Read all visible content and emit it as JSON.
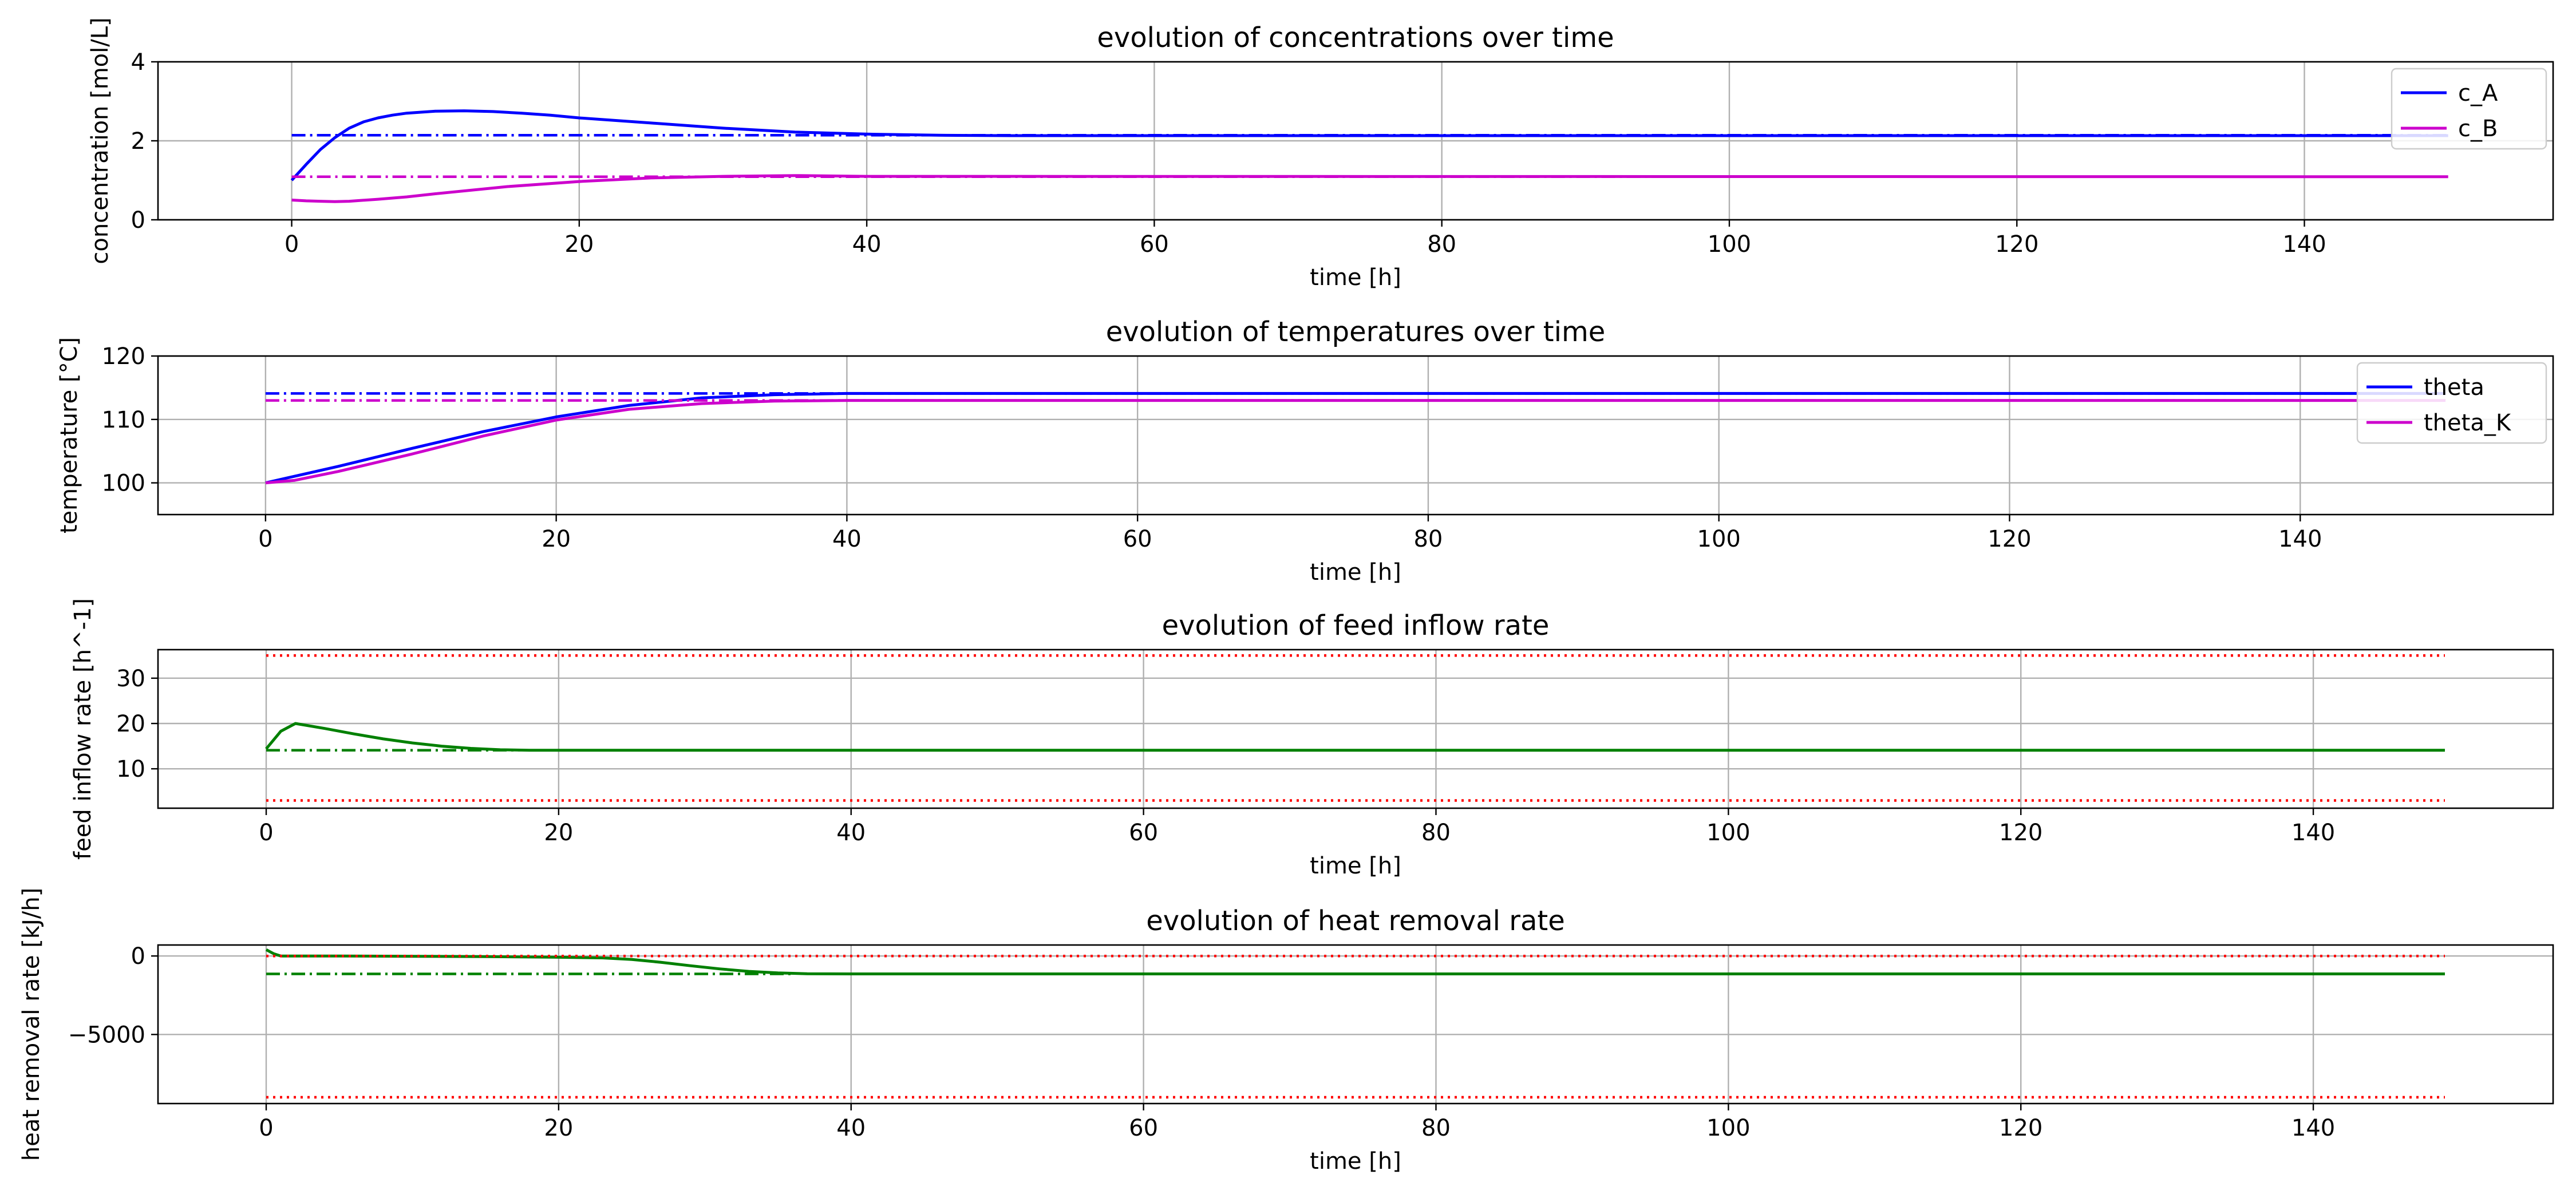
{
  "chart_data": [
    {
      "type": "line",
      "title": "evolution of concentrations over time",
      "xlabel": "time [h]",
      "ylabel": "concentration [mol/L]",
      "xlim": [
        -9.3,
        157.3
      ],
      "ylim": [
        0,
        4
      ],
      "xticks": [
        0,
        20,
        40,
        60,
        80,
        100,
        120,
        140
      ],
      "yticks": [
        0,
        2,
        4
      ],
      "grid": true,
      "legend_position": "upper right",
      "series": [
        {
          "name": "c_A",
          "color": "#0000ff",
          "style": "solid",
          "x": [
            0,
            1,
            2,
            3,
            4,
            5,
            6,
            7,
            8,
            10,
            12,
            14,
            16,
            18,
            20,
            25,
            30,
            35,
            40,
            45,
            50,
            150
          ],
          "y": [
            1.0,
            1.4,
            1.78,
            2.08,
            2.32,
            2.48,
            2.58,
            2.65,
            2.7,
            2.75,
            2.76,
            2.74,
            2.7,
            2.65,
            2.58,
            2.45,
            2.32,
            2.22,
            2.17,
            2.14,
            2.13,
            2.13
          ]
        },
        {
          "name": "c_B",
          "color": "#cc00cc",
          "style": "solid",
          "x": [
            0,
            1,
            2,
            3,
            4,
            6,
            8,
            10,
            15,
            20,
            25,
            30,
            35,
            40,
            150
          ],
          "y": [
            0.5,
            0.48,
            0.47,
            0.46,
            0.47,
            0.52,
            0.58,
            0.66,
            0.84,
            0.97,
            1.06,
            1.1,
            1.12,
            1.1,
            1.09
          ]
        },
        {
          "color": "#0000ff",
          "style": "dashdot",
          "x": [
            0,
            150
          ],
          "y": [
            2.14,
            2.14
          ]
        },
        {
          "color": "#cc00cc",
          "style": "dashdot",
          "x": [
            0,
            150
          ],
          "y": [
            1.09,
            1.09
          ]
        }
      ]
    },
    {
      "type": "line",
      "title": "evolution of temperatures over time",
      "xlabel": "time [h]",
      "ylabel": "temperature [°C]",
      "xlim": [
        -7.4,
        157.4
      ],
      "ylim": [
        95,
        120
      ],
      "xticks": [
        0,
        20,
        40,
        60,
        80,
        100,
        120,
        140
      ],
      "yticks": [
        100,
        110,
        120
      ],
      "grid": true,
      "legend_position": "upper right",
      "series": [
        {
          "name": "theta",
          "color": "#0000ff",
          "style": "solid",
          "x": [
            0,
            5,
            10,
            15,
            20,
            25,
            30,
            35,
            40,
            150
          ],
          "y": [
            100,
            102.6,
            105.4,
            108.1,
            110.4,
            112.2,
            113.4,
            113.9,
            114.1,
            114.1
          ]
        },
        {
          "name": "theta_K",
          "color": "#cc00cc",
          "style": "solid",
          "x": [
            0,
            2,
            5,
            10,
            15,
            20,
            25,
            30,
            35,
            40,
            150
          ],
          "y": [
            100,
            100.4,
            101.8,
            104.5,
            107.4,
            109.9,
            111.6,
            112.5,
            112.9,
            113.0,
            113.0
          ]
        },
        {
          "color": "#0000ff",
          "style": "dashdot",
          "x": [
            0,
            150
          ],
          "y": [
            114.1,
            114.1
          ]
        },
        {
          "color": "#cc00cc",
          "style": "dashdot",
          "x": [
            0,
            150
          ],
          "y": [
            113.0,
            113.0
          ]
        }
      ]
    },
    {
      "type": "line",
      "title": "evolution of feed inflow rate",
      "xlabel": "time [h]",
      "ylabel": "feed inflow rate [h^-1]",
      "xlim": [
        -7.4,
        156.4
      ],
      "ylim": [
        1.3,
        36.3
      ],
      "xticks": [
        0,
        20,
        40,
        60,
        80,
        100,
        120,
        140
      ],
      "yticks": [
        10,
        20,
        30
      ],
      "grid": true,
      "series": [
        {
          "color": "#008000",
          "style": "solid",
          "x": [
            0,
            1,
            2,
            4,
            6,
            8,
            10,
            12,
            14,
            16,
            18,
            20,
            149
          ],
          "y": [
            14.4,
            18.3,
            20.0,
            18.9,
            17.7,
            16.6,
            15.7,
            15.0,
            14.5,
            14.2,
            14.1,
            14.1,
            14.1
          ]
        },
        {
          "color": "#008000",
          "style": "dashdot",
          "x": [
            0,
            18
          ],
          "y": [
            14.1,
            14.1
          ]
        },
        {
          "color": "#ff0000",
          "style": "dotted",
          "x": [
            0,
            149
          ],
          "y": [
            35.0,
            35.0
          ]
        },
        {
          "color": "#ff0000",
          "style": "dotted",
          "x": [
            0,
            149
          ],
          "y": [
            3.0,
            3.0
          ]
        }
      ]
    },
    {
      "type": "line",
      "title": "evolution of heat removal rate",
      "xlabel": "time [h]",
      "ylabel": "heat removal rate [kJ/h]",
      "xlim": [
        -7.4,
        156.4
      ],
      "ylim": [
        -9400,
        700
      ],
      "xticks": [
        0,
        20,
        40,
        60,
        80,
        100,
        120,
        140
      ],
      "yticks": [
        0,
        -5000
      ],
      "ytick_labels": [
        "0",
        "−5000"
      ],
      "grid": true,
      "series": [
        {
          "color": "#008000",
          "style": "solid",
          "x": [
            0,
            0.5,
            1,
            5,
            10,
            15,
            20,
            23,
            25,
            27,
            29,
            31,
            33,
            35,
            37,
            40,
            149
          ],
          "y": [
            400,
            150,
            0,
            0,
            -20,
            -40,
            -80,
            -120,
            -220,
            -400,
            -620,
            -820,
            -980,
            -1080,
            -1130,
            -1140,
            -1140
          ]
        },
        {
          "color": "#008000",
          "style": "dashdot",
          "x": [
            0,
            36
          ],
          "y": [
            -1140,
            -1140
          ]
        },
        {
          "color": "#ff0000",
          "style": "dotted",
          "x": [
            0,
            149
          ],
          "y": [
            0,
            0
          ]
        },
        {
          "color": "#ff0000",
          "style": "dotted",
          "x": [
            0,
            149
          ],
          "y": [
            -9000,
            -9000
          ]
        }
      ]
    }
  ]
}
